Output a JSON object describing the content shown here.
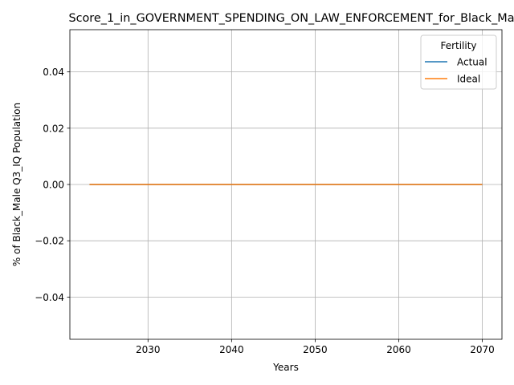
{
  "chart_data": {
    "type": "line",
    "title": "Score_1_in_GOVERNMENT_SPENDING_ON_LAW_ENFORCEMENT_for_Black_Ma",
    "xlabel": "Years",
    "ylabel": "% of Black_Male Q3_IQ Population",
    "xlim": [
      2020.65,
      2072.35
    ],
    "ylim": [
      -0.055,
      0.055
    ],
    "xticks": [
      2030,
      2040,
      2050,
      2060,
      2070
    ],
    "yticks": [
      -0.04,
      -0.02,
      0.0,
      0.02,
      0.04
    ],
    "xtick_labels": [
      "2030",
      "2040",
      "2050",
      "2060",
      "2070"
    ],
    "ytick_labels": [
      "−0.04",
      "−0.02",
      "0.00",
      "0.02",
      "0.04"
    ],
    "grid": true,
    "legend": {
      "title": "Fertility",
      "position": "top-right"
    },
    "x": [
      2023,
      2070
    ],
    "series": [
      {
        "name": "Actual",
        "color": "#1f77b4",
        "values": [
          0,
          0
        ]
      },
      {
        "name": "Ideal",
        "color": "#ff7f0e",
        "values": [
          0,
          0
        ]
      }
    ]
  }
}
